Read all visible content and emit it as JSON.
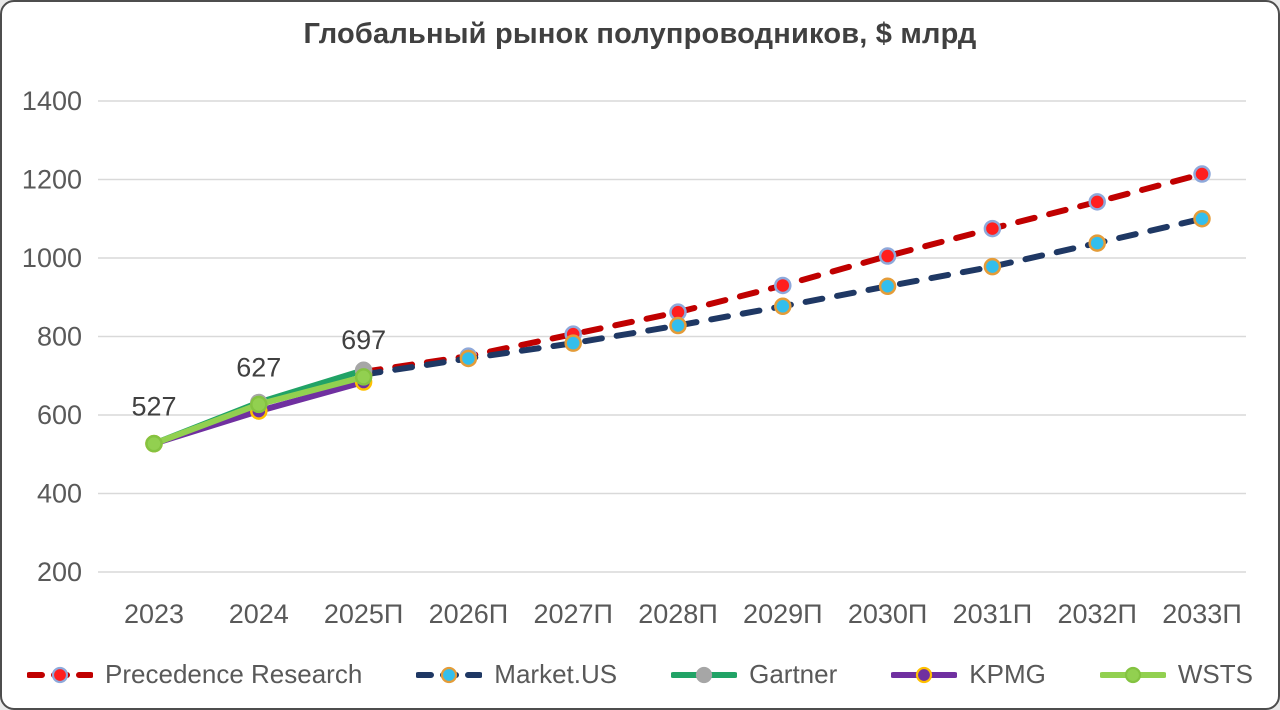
{
  "title": "Глобальный рынок полупроводников, $ млрд",
  "colors": {
    "background": "#FFFFFF",
    "border": "#4D4D4D",
    "gridline": "#D9D9D9",
    "title_text": "#404040",
    "axis_text": "#595959",
    "data_label_text": "#404040"
  },
  "chart_data": {
    "type": "line",
    "title": "Глобальный рынок полупроводников, $ млрд",
    "categories": [
      "2023",
      "2024",
      "2025П",
      "2026П",
      "2027П",
      "2028П",
      "2029П",
      "2030П",
      "2031П",
      "2032П",
      "2033П"
    ],
    "y_axis": {
      "min": 200,
      "max": 1400,
      "step": 200,
      "tick_labels": [
        "1400",
        "1200",
        "1000",
        "800",
        "600",
        "400",
        "200"
      ]
    },
    "grid": true,
    "legend_position": "bottom",
    "series": [
      {
        "name": "Precedence Research",
        "dashed": true,
        "line_color": "#C00000",
        "marker_fill": "#FF1F1F",
        "marker_edge": "#8EA9DB",
        "values": [
          null,
          null,
          710,
          750,
          806,
          862,
          930,
          1005,
          1075,
          1143,
          1214
        ]
      },
      {
        "name": "Market.US",
        "dashed": true,
        "line_color": "#1F3864",
        "marker_fill": "#33BEEC",
        "marker_edge": "#E49C39",
        "values": [
          null,
          null,
          703,
          744,
          783,
          828,
          877,
          928,
          978,
          1038,
          1100
        ]
      },
      {
        "name": "Gartner",
        "dashed": false,
        "line_color": "#21A366",
        "marker_fill": "#A6A6A6",
        "marker_edge": "#A6A6A6",
        "values": [
          527,
          632,
          714,
          null,
          null,
          null,
          null,
          null,
          null,
          null,
          null
        ]
      },
      {
        "name": "KPMG",
        "dashed": false,
        "line_color": "#7030A0",
        "marker_fill": "#7030A0",
        "marker_edge": "#FFC000",
        "values": [
          527,
          610,
          684,
          null,
          null,
          null,
          null,
          null,
          null,
          null,
          null
        ]
      },
      {
        "name": "WSTS",
        "dashed": false,
        "line_color": "#92D050",
        "marker_fill": "#92D050",
        "marker_edge": "#84C341",
        "values": [
          527,
          627,
          697,
          null,
          null,
          null,
          null,
          null,
          null,
          null,
          null
        ]
      }
    ],
    "data_labels": [
      {
        "text": "527",
        "category_index": 0,
        "value": 527
      },
      {
        "text": "627",
        "category_index": 1,
        "value": 627
      },
      {
        "text": "697",
        "category_index": 2,
        "value": 697
      }
    ]
  }
}
